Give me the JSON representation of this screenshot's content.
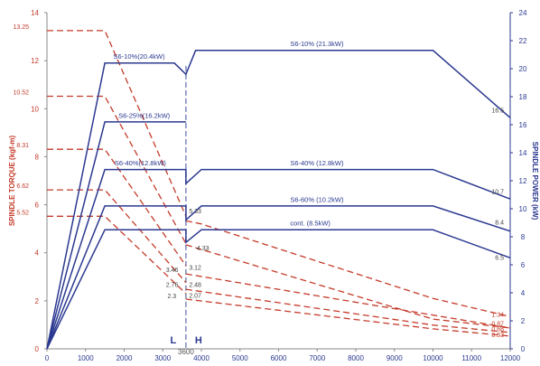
{
  "chart_data": {
    "type": "line",
    "xlabel": "",
    "ylabel_left": "SPINDLE TORQUE (kgf-m)",
    "ylabel_right": "SPINDLE POWER (kW)",
    "xlim": [
      0,
      12000
    ],
    "ylim_left": [
      0,
      14
    ],
    "ylim_right": [
      0,
      24
    ],
    "x_ticks": [
      "0",
      "1000",
      "2000",
      "3000",
      "4000",
      "5000",
      "6000",
      "7000",
      "8000",
      "9000",
      "10000",
      "11000",
      "12000"
    ],
    "y_left_ticks": [
      "0",
      "2",
      "4",
      "6",
      "8",
      "10",
      "12",
      "14"
    ],
    "y_right_ticks": [
      "0",
      "2",
      "4",
      "6",
      "8",
      "10",
      "12",
      "14",
      "16",
      "18",
      "20",
      "22",
      "24"
    ],
    "switch_speed_label": "3600",
    "low_label": "L",
    "high_label": "H",
    "left_annotations": [
      "13.25",
      "10.52",
      "8.31",
      "6.62",
      "5.52"
    ],
    "right_annotations": [
      "16.5",
      "10.7",
      "8.4",
      "6.5"
    ],
    "power_series": [
      {
        "name": "S6-10%",
        "label_low": "S6-10%(20.4kW)",
        "label_high": "S6-10% (21.3kW)",
        "points": [
          [
            0,
            0
          ],
          [
            1500,
            20.4
          ],
          [
            3300,
            20.4
          ],
          [
            3600,
            19.6
          ],
          [
            3850,
            21.3
          ],
          [
            10000,
            21.3
          ],
          [
            12000,
            16.5
          ]
        ]
      },
      {
        "name": "S6-25%",
        "label_low": "S6-25%(16.2kW)",
        "points": [
          [
            0,
            0
          ],
          [
            1500,
            16.2
          ],
          [
            3600,
            16.2
          ]
        ]
      },
      {
        "name": "S6-40%",
        "label_low": "S6-40%(12.8kW)",
        "label_high": "S6-40% (12.8kW)",
        "points": [
          [
            0,
            0
          ],
          [
            1500,
            12.8
          ],
          [
            3600,
            12.8
          ],
          [
            3600,
            11.8
          ],
          [
            4000,
            12.8
          ],
          [
            10000,
            12.8
          ],
          [
            12000,
            10.7
          ]
        ]
      },
      {
        "name": "S6-60%",
        "label_high": "S6-60% (10.2kW)",
        "points": [
          [
            0,
            0
          ],
          [
            1500,
            10.2
          ],
          [
            3600,
            10.2
          ],
          [
            3600,
            9.2
          ],
          [
            4000,
            10.2
          ],
          [
            10000,
            10.2
          ],
          [
            12000,
            8.4
          ]
        ]
      },
      {
        "name": "cont.",
        "label_high": "cont. (8.5kW)",
        "points": [
          [
            0,
            0
          ],
          [
            1500,
            8.5
          ],
          [
            3600,
            8.5
          ],
          [
            3600,
            7.6
          ],
          [
            4000,
            8.5
          ],
          [
            10000,
            8.5
          ],
          [
            12000,
            6.5
          ]
        ]
      }
    ],
    "torque_series": [
      {
        "name": "S6-10%",
        "start_value": 13.25,
        "h_start_value": 5.33,
        "low": [
          [
            0,
            13.25
          ],
          [
            1500,
            13.25
          ],
          [
            3600,
            5.52
          ]
        ],
        "high": [
          [
            3600,
            5.33
          ],
          [
            4000,
            5.2
          ],
          [
            10000,
            2.1
          ],
          [
            12000,
            1.34
          ]
        ]
      },
      {
        "name": "S6-25%",
        "start_value": 10.52,
        "h_start_value": 3.12,
        "low": [
          [
            0,
            10.52
          ],
          [
            1500,
            10.52
          ],
          [
            3600,
            4.38
          ]
        ],
        "high": [
          [
            3600,
            3.12
          ],
          [
            12000,
            0.87
          ]
        ]
      },
      {
        "name": "S6-40%",
        "start_value": 8.31,
        "h_start_value": 4.33,
        "low": [
          [
            0,
            8.31
          ],
          [
            1500,
            8.31
          ],
          [
            3600,
            3.46
          ]
        ],
        "high": [
          [
            3600,
            4.33
          ],
          [
            10000,
            1.24
          ],
          [
            12000,
            0.87
          ]
        ]
      },
      {
        "name": "S6-60%",
        "start_value": 6.62,
        "h_start_value": 2.48,
        "low": [
          [
            0,
            6.62
          ],
          [
            1500,
            6.62
          ],
          [
            3600,
            2.76
          ]
        ],
        "high": [
          [
            3600,
            2.48
          ],
          [
            10000,
            0.99
          ],
          [
            12000,
            0.68
          ]
        ]
      },
      {
        "name": "cont.",
        "start_value": 5.52,
        "h_start_value": 2.07,
        "low": [
          [
            0,
            5.52
          ],
          [
            1500,
            5.52
          ],
          [
            3600,
            2.3
          ]
        ],
        "high": [
          [
            3600,
            2.07
          ],
          [
            10000,
            0.83
          ],
          [
            12000,
            0.53
          ]
        ]
      }
    ],
    "junction_labels": [
      "5.33",
      "4.33",
      "3.46",
      "3.12",
      "2.76",
      "2.48",
      "2.07",
      "2.3"
    ],
    "end_labels": [
      "1.34",
      "0.87",
      "0.68",
      "0.53"
    ],
    "colors": {
      "power": "#2b3990",
      "torque": "#c43b2a",
      "divider": "#7a88b8"
    }
  }
}
